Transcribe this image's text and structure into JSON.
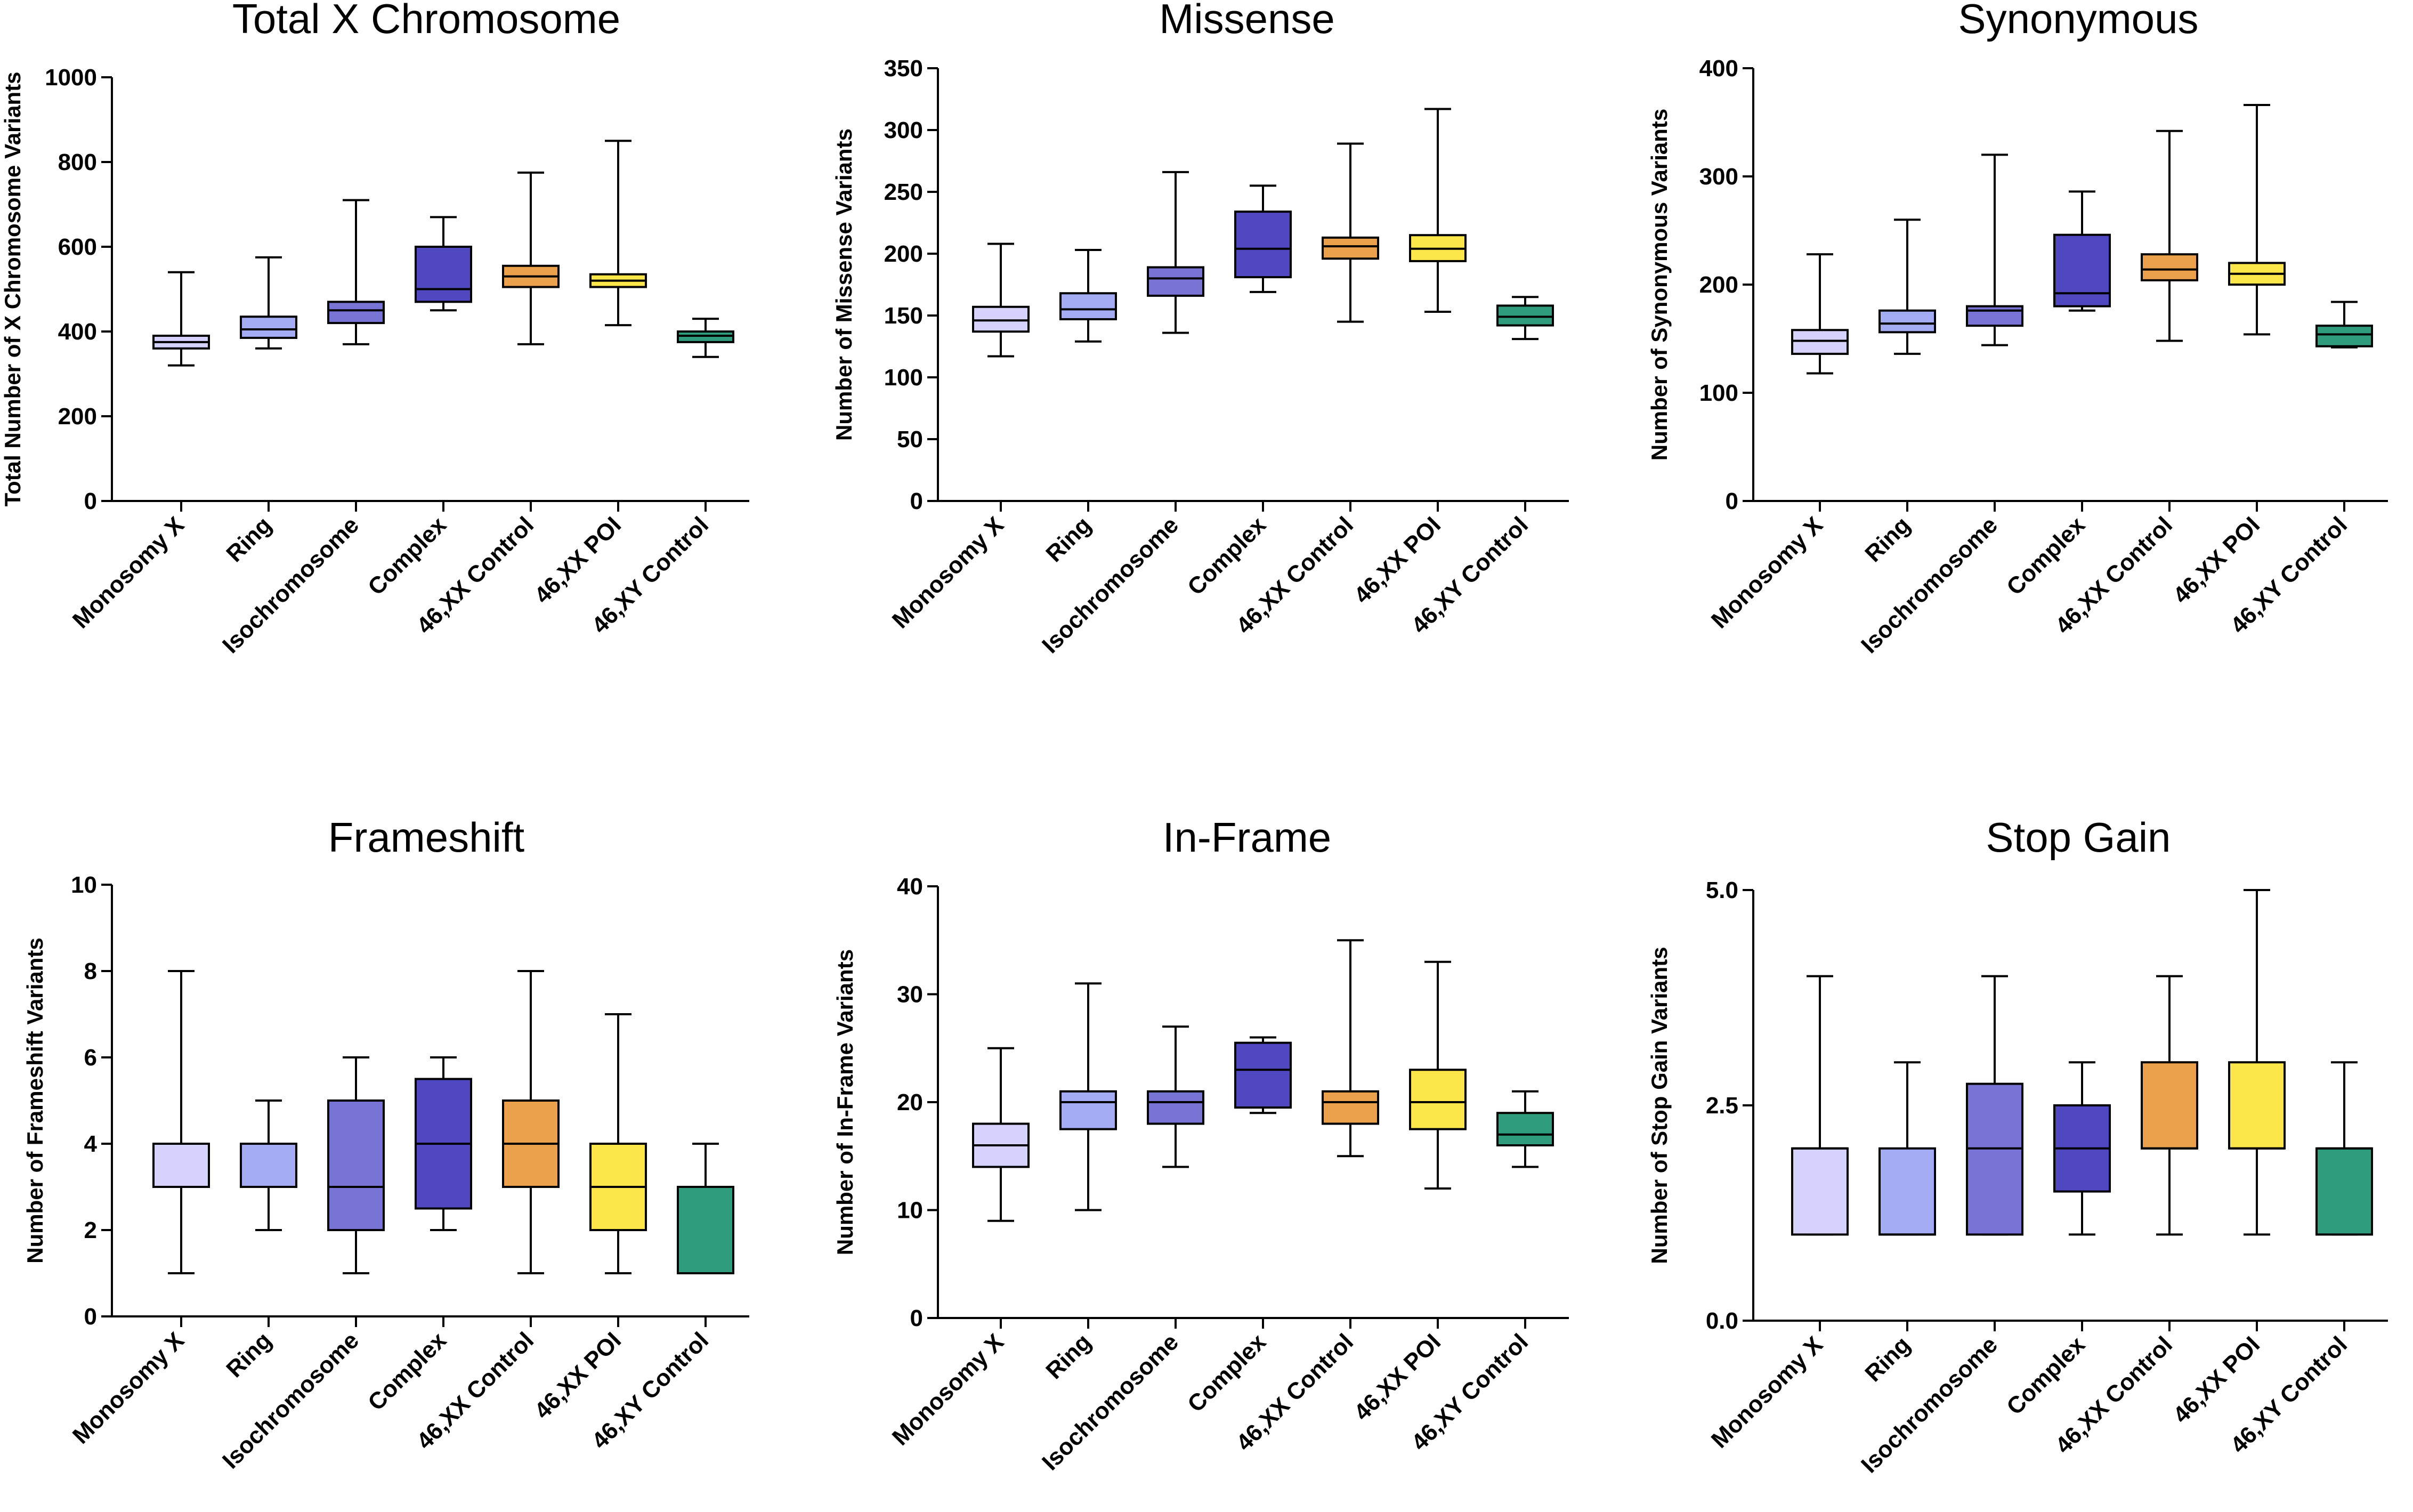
{
  "figure": {
    "colors": {
      "Monosomy X": "#d5d3fb",
      "Ring": "#a3acf3",
      "Isochromosome": "#7774d6",
      "Complex": "#5048c0",
      "46,XX Control": "#eba14b",
      "46,XX POI": "#fde64a",
      "46,XY Control": "#2f9c7d"
    }
  },
  "chart_data": [
    {
      "type": "box",
      "title": "Total X Chromosome",
      "ylabel": "Total Number of X Chromosome Variants",
      "ylim": [
        0,
        1000
      ],
      "yticks": [
        0,
        200,
        400,
        600,
        800,
        1000
      ],
      "ytick_labels": [
        "0",
        "200",
        "400",
        "600",
        "800",
        "1000"
      ],
      "categories": [
        "Monosomy X",
        "Ring",
        "Isochromosome",
        "Complex",
        "46,XX Control",
        "46,XX POI",
        "46,XY Control"
      ],
      "boxes": [
        {
          "min": 320,
          "q1": 360,
          "median": 375,
          "q3": 390,
          "max": 540
        },
        {
          "min": 360,
          "q1": 385,
          "median": 405,
          "q3": 435,
          "max": 575
        },
        {
          "min": 370,
          "q1": 420,
          "median": 450,
          "q3": 470,
          "max": 710
        },
        {
          "min": 450,
          "q1": 470,
          "median": 500,
          "q3": 600,
          "max": 670
        },
        {
          "min": 370,
          "q1": 505,
          "median": 530,
          "q3": 555,
          "max": 775
        },
        {
          "min": 415,
          "q1": 505,
          "median": 520,
          "q3": 535,
          "max": 850
        },
        {
          "min": 340,
          "q1": 375,
          "median": 390,
          "q3": 400,
          "max": 430
        }
      ]
    },
    {
      "type": "box",
      "title": "Missense",
      "ylabel": "Number of Missense Variants",
      "ylim": [
        0,
        350
      ],
      "yticks": [
        0,
        50,
        100,
        150,
        200,
        250,
        300,
        350
      ],
      "ytick_labels": [
        "0",
        "50",
        "100",
        "150",
        "200",
        "250",
        "300",
        "350"
      ],
      "categories": [
        "Monosomy X",
        "Ring",
        "Isochromosome",
        "Complex",
        "46,XX Control",
        "46,XX POI",
        "46,XY Control"
      ],
      "boxes": [
        {
          "min": 117,
          "q1": 137,
          "median": 146,
          "q3": 157,
          "max": 208
        },
        {
          "min": 129,
          "q1": 147,
          "median": 155,
          "q3": 168,
          "max": 203
        },
        {
          "min": 136,
          "q1": 166,
          "median": 180,
          "q3": 189,
          "max": 266
        },
        {
          "min": 169,
          "q1": 181,
          "median": 204,
          "q3": 234,
          "max": 255
        },
        {
          "min": 145,
          "q1": 196,
          "median": 206,
          "q3": 213,
          "max": 289
        },
        {
          "min": 153,
          "q1": 194,
          "median": 204,
          "q3": 215,
          "max": 317
        },
        {
          "min": 131,
          "q1": 142,
          "median": 149,
          "q3": 158,
          "max": 165
        }
      ]
    },
    {
      "type": "box",
      "title": "Synonymous",
      "ylabel": "Number of Synonymous Variants",
      "ylim": [
        0,
        400
      ],
      "yticks": [
        0,
        100,
        200,
        300,
        400
      ],
      "ytick_labels": [
        "0",
        "100",
        "200",
        "300",
        "400"
      ],
      "categories": [
        "Monosomy X",
        "Ring",
        "Isochromosome",
        "Complex",
        "46,XX Control",
        "46,XX POI",
        "46,XY Control"
      ],
      "boxes": [
        {
          "min": 118,
          "q1": 136,
          "median": 148,
          "q3": 158,
          "max": 228
        },
        {
          "min": 136,
          "q1": 156,
          "median": 164,
          "q3": 176,
          "max": 260
        },
        {
          "min": 144,
          "q1": 162,
          "median": 176,
          "q3": 180,
          "max": 320
        },
        {
          "min": 176,
          "q1": 180,
          "median": 192,
          "q3": 246,
          "max": 286
        },
        {
          "min": 148,
          "q1": 204,
          "median": 214,
          "q3": 228,
          "max": 342
        },
        {
          "min": 154,
          "q1": 200,
          "median": 210,
          "q3": 220,
          "max": 366
        },
        {
          "min": 142,
          "q1": 143,
          "median": 154,
          "q3": 162,
          "max": 184
        }
      ]
    },
    {
      "type": "box",
      "title": "Frameshift",
      "ylabel": "Number of Frameshift Variants",
      "ylim": [
        0,
        10
      ],
      "yticks": [
        0,
        2,
        4,
        6,
        8,
        10
      ],
      "ytick_labels": [
        "0",
        "2",
        "4",
        "6",
        "8",
        "10"
      ],
      "categories": [
        "Monosomy X",
        "Ring",
        "Isochromosome",
        "Complex",
        "46,XX Control",
        "46,XX POI",
        "46,XY Control"
      ],
      "boxes": [
        {
          "min": 1,
          "q1": 3,
          "median": 4,
          "q3": 4,
          "max": 8
        },
        {
          "min": 2,
          "q1": 3,
          "median": 4,
          "q3": 4,
          "max": 5
        },
        {
          "min": 1,
          "q1": 2,
          "median": 3,
          "q3": 5,
          "max": 6
        },
        {
          "min": 2,
          "q1": 2.5,
          "median": 4,
          "q3": 5.5,
          "max": 6
        },
        {
          "min": 1,
          "q1": 3,
          "median": 4,
          "q3": 5,
          "max": 8
        },
        {
          "min": 1,
          "q1": 2,
          "median": 3,
          "q3": 4,
          "max": 7
        },
        {
          "min": 1,
          "q1": 1,
          "median": 3,
          "q3": 3,
          "max": 4
        }
      ]
    },
    {
      "type": "box",
      "title": "In-Frame",
      "ylabel": "Number of In-Frame Variants",
      "ylim": [
        0,
        40
      ],
      "yticks": [
        0,
        10,
        20,
        30,
        40
      ],
      "ytick_labels": [
        "0",
        "10",
        "20",
        "30",
        "40"
      ],
      "categories": [
        "Monosomy X",
        "Ring",
        "Isochromosome",
        "Complex",
        "46,XX Control",
        "46,XX POI",
        "46,XY Control"
      ],
      "boxes": [
        {
          "min": 9,
          "q1": 14,
          "median": 16,
          "q3": 18,
          "max": 25
        },
        {
          "min": 10,
          "q1": 17.5,
          "median": 20,
          "q3": 21,
          "max": 31
        },
        {
          "min": 14,
          "q1": 18,
          "median": 20,
          "q3": 21,
          "max": 27
        },
        {
          "min": 19,
          "q1": 19.5,
          "median": 23,
          "q3": 25.5,
          "max": 26
        },
        {
          "min": 15,
          "q1": 18,
          "median": 20,
          "q3": 21,
          "max": 35
        },
        {
          "min": 12,
          "q1": 17.5,
          "median": 20,
          "q3": 23,
          "max": 33
        },
        {
          "min": 14,
          "q1": 16,
          "median": 17,
          "q3": 19,
          "max": 21
        }
      ]
    },
    {
      "type": "box",
      "title": "Stop Gain",
      "ylabel": "Number of Stop Gain Variants",
      "ylim": [
        0,
        5
      ],
      "yticks": [
        0,
        2.5,
        5
      ],
      "ytick_labels": [
        "0.0",
        "2.5",
        "5.0"
      ],
      "categories": [
        "Monosomy X",
        "Ring",
        "Isochromosome",
        "Complex",
        "46,XX Control",
        "46,XX POI",
        "46,XY Control"
      ],
      "boxes": [
        {
          "min": 1,
          "q1": 1,
          "median": 2,
          "q3": 2,
          "max": 4
        },
        {
          "min": 1,
          "q1": 1,
          "median": 1,
          "q3": 2,
          "max": 3
        },
        {
          "min": 1,
          "q1": 1,
          "median": 2,
          "q3": 2.75,
          "max": 4
        },
        {
          "min": 1,
          "q1": 1.5,
          "median": 2,
          "q3": 2.5,
          "max": 3
        },
        {
          "min": 1,
          "q1": 2,
          "median": 2,
          "q3": 3,
          "max": 4
        },
        {
          "min": 1,
          "q1": 2,
          "median": 2,
          "q3": 3,
          "max": 5
        },
        {
          "min": 1,
          "q1": 1,
          "median": 2,
          "q3": 2,
          "max": 3
        }
      ]
    }
  ]
}
